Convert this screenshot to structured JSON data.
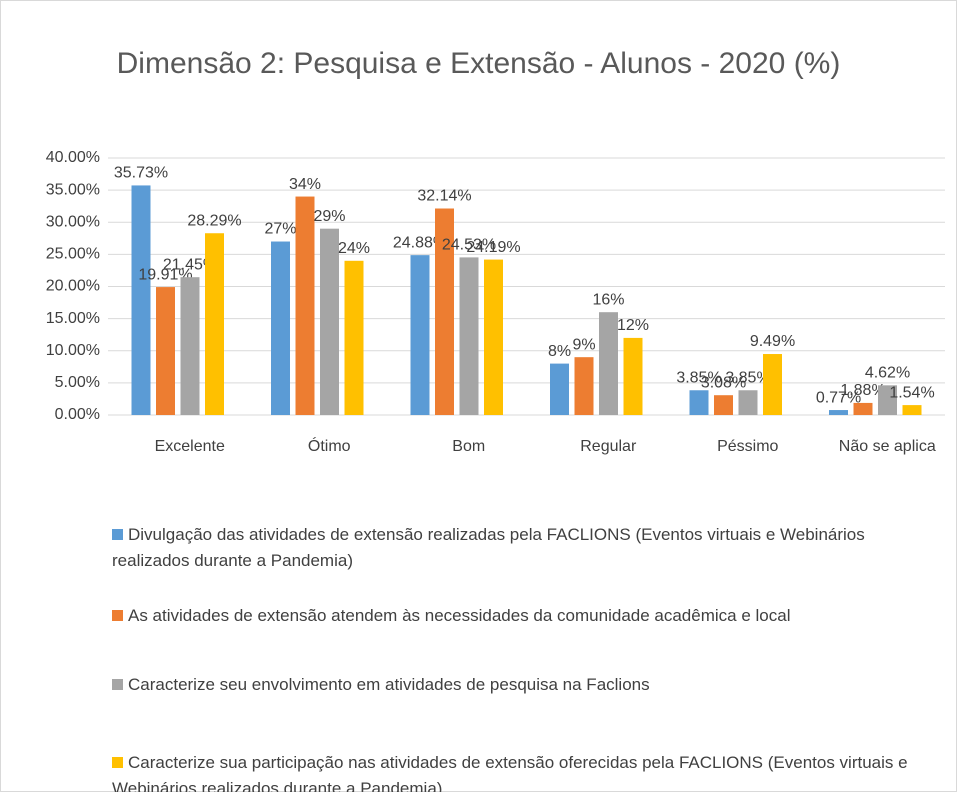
{
  "chart_data": {
    "type": "bar",
    "title": "Dimensão 2: Pesquisa e Extensão - Alunos - 2020 (%)",
    "categories": [
      "Excelente",
      "Ótimo",
      "Bom",
      "Regular",
      "Péssimo",
      "Não se aplica"
    ],
    "series": [
      {
        "name": "Divulgação das atividades de extensão realizadas pela FACLIONS (Eventos virtuais e Webinários realizados durante a Pandemia)",
        "color": "#5b9bd5",
        "values": [
          35.73,
          27,
          24.88,
          8,
          3.85,
          0.77
        ],
        "value_labels": [
          "35.73%",
          "27%",
          "24.88%",
          "8%",
          "3.85%",
          "0.77%"
        ]
      },
      {
        "name": "As atividades de extensão atendem às necessidades da comunidade acadêmica e local",
        "color": "#ed7d31",
        "values": [
          19.91,
          34,
          32.14,
          9,
          3.08,
          1.88
        ],
        "value_labels": [
          "19.91%",
          "34%",
          "32.14%",
          "9%",
          "3.08%",
          "1.88%"
        ]
      },
      {
        "name": "Caracterize seu envolvimento em atividades de pesquisa na Faclions",
        "color": "#a5a5a5",
        "values": [
          21.45,
          29,
          24.53,
          16,
          3.85,
          4.62
        ],
        "value_labels": [
          "21.45%",
          "29%",
          "24.53%",
          "16%",
          "3.85%",
          "4.62%"
        ]
      },
      {
        "name": "Caracterize sua participação nas atividades de extensão oferecidas pela FACLIONS (Eventos virtuais e Webinários realizados durante a Pandemia)",
        "color": "#ffc000",
        "values": [
          28.29,
          24,
          24.19,
          12,
          9.49,
          1.54
        ],
        "value_labels": [
          "28.29%",
          "24%",
          "24.19%",
          "12%",
          "9.49%",
          "1.54%"
        ]
      }
    ],
    "ylim": [
      0,
      40
    ],
    "yticks": [
      {
        "value": 0,
        "label": "0.00%"
      },
      {
        "value": 5,
        "label": "5.00%"
      },
      {
        "value": 10,
        "label": "10.00%"
      },
      {
        "value": 15,
        "label": "15.00%"
      },
      {
        "value": 20,
        "label": "20.00%"
      },
      {
        "value": 25,
        "label": "25.00%"
      },
      {
        "value": 30,
        "label": "30.00%"
      },
      {
        "value": 35,
        "label": "35.00%"
      },
      {
        "value": 40,
        "label": "40.00%"
      }
    ],
    "grid": true,
    "legend": "bottom"
  }
}
